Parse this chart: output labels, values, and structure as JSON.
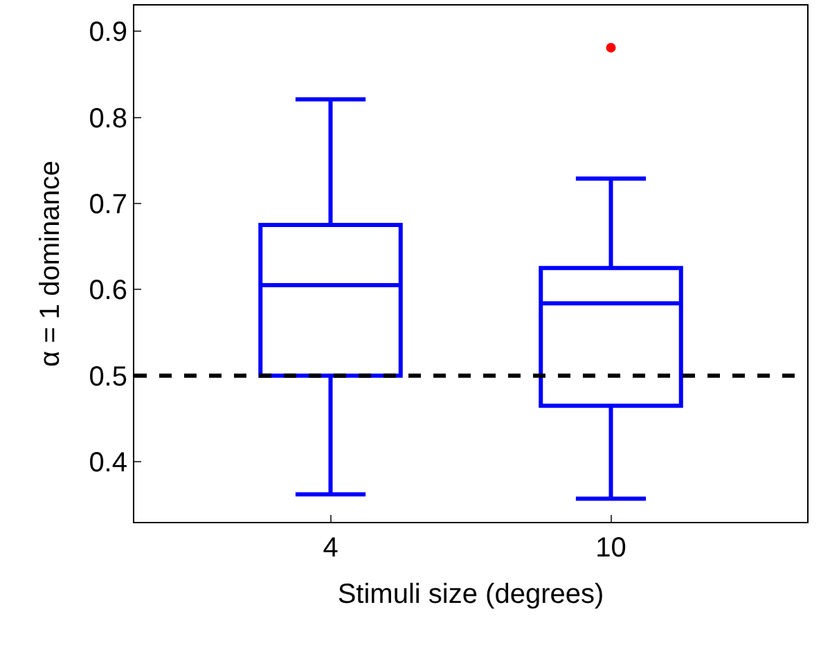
{
  "chart_data": {
    "type": "box",
    "xlabel": "Stimuli size (degrees)",
    "ylabel": "α = 1 dominance",
    "categories": [
      "4",
      "10"
    ],
    "series": [
      {
        "color": "#0000ff",
        "boxes": [
          {
            "low": 0.362,
            "q1": 0.5,
            "median": 0.605,
            "q3": 0.675,
            "high": 0.821
          },
          {
            "low": 0.357,
            "q1": 0.465,
            "median": 0.584,
            "q3": 0.625,
            "high": 0.729,
            "outliers": [
              0.881
            ]
          }
        ]
      }
    ],
    "ylim": [
      0.33,
      0.93
    ],
    "yticks": [
      0.4,
      0.5,
      0.6,
      0.7,
      0.8,
      0.9
    ],
    "ref_lines": [
      {
        "axis": "y",
        "value": 0.5,
        "color": "#000000",
        "line_style": "dashed"
      }
    ]
  }
}
